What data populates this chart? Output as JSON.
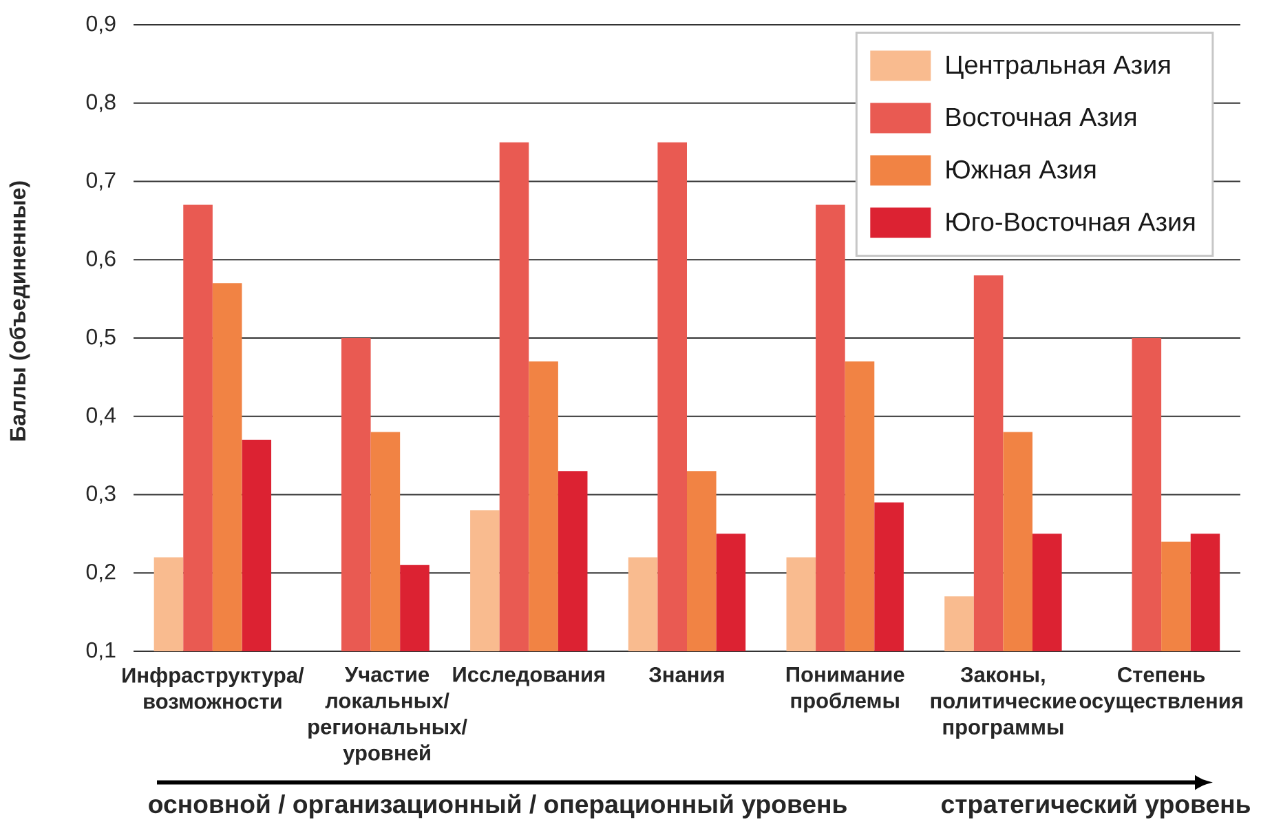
{
  "chart_data": {
    "type": "bar",
    "ylabel": "Баллы (объединенные)",
    "categories": [
      "Инфраструктура/ возможности",
      "Участие локальных/ региональных/ уровней",
      "Исследования",
      "Знания",
      "Понимание проблемы",
      "Законы, политические программы",
      "Степень осуществления"
    ],
    "series": [
      {
        "name": "Центральная Азия",
        "color": "#f9bb8f",
        "values": [
          0.22,
          null,
          0.28,
          0.22,
          0.22,
          0.17,
          null
        ]
      },
      {
        "name": "Восточная Азия",
        "color": "#e95a52",
        "values": [
          0.67,
          0.5,
          0.75,
          0.75,
          0.67,
          0.58,
          0.5
        ]
      },
      {
        "name": "Южная Азия",
        "color": "#f18344",
        "values": [
          0.57,
          0.38,
          0.47,
          0.33,
          0.47,
          0.38,
          0.24
        ]
      },
      {
        "name": "Юго-Восточная Азия",
        "color": "#dc2232",
        "values": [
          0.37,
          0.21,
          0.33,
          0.25,
          0.29,
          0.25,
          0.25
        ]
      }
    ],
    "ylim": [
      0.1,
      0.9
    ],
    "yticks": [
      {
        "value": 0.1,
        "label": "0,1"
      },
      {
        "value": 0.2,
        "label": "0,2"
      },
      {
        "value": 0.3,
        "label": "0,3"
      },
      {
        "value": 0.4,
        "label": "0,4"
      },
      {
        "value": 0.5,
        "label": "0,5"
      },
      {
        "value": 0.6,
        "label": "0,6"
      },
      {
        "value": 0.7,
        "label": "0,7"
      },
      {
        "value": 0.8,
        "label": "0,8"
      },
      {
        "value": 0.9,
        "label": "0,9"
      }
    ],
    "grid": "y",
    "legend": "top right",
    "annotations": [
      "основной / организационный / операционный уровень",
      "стратегический уровень"
    ]
  }
}
